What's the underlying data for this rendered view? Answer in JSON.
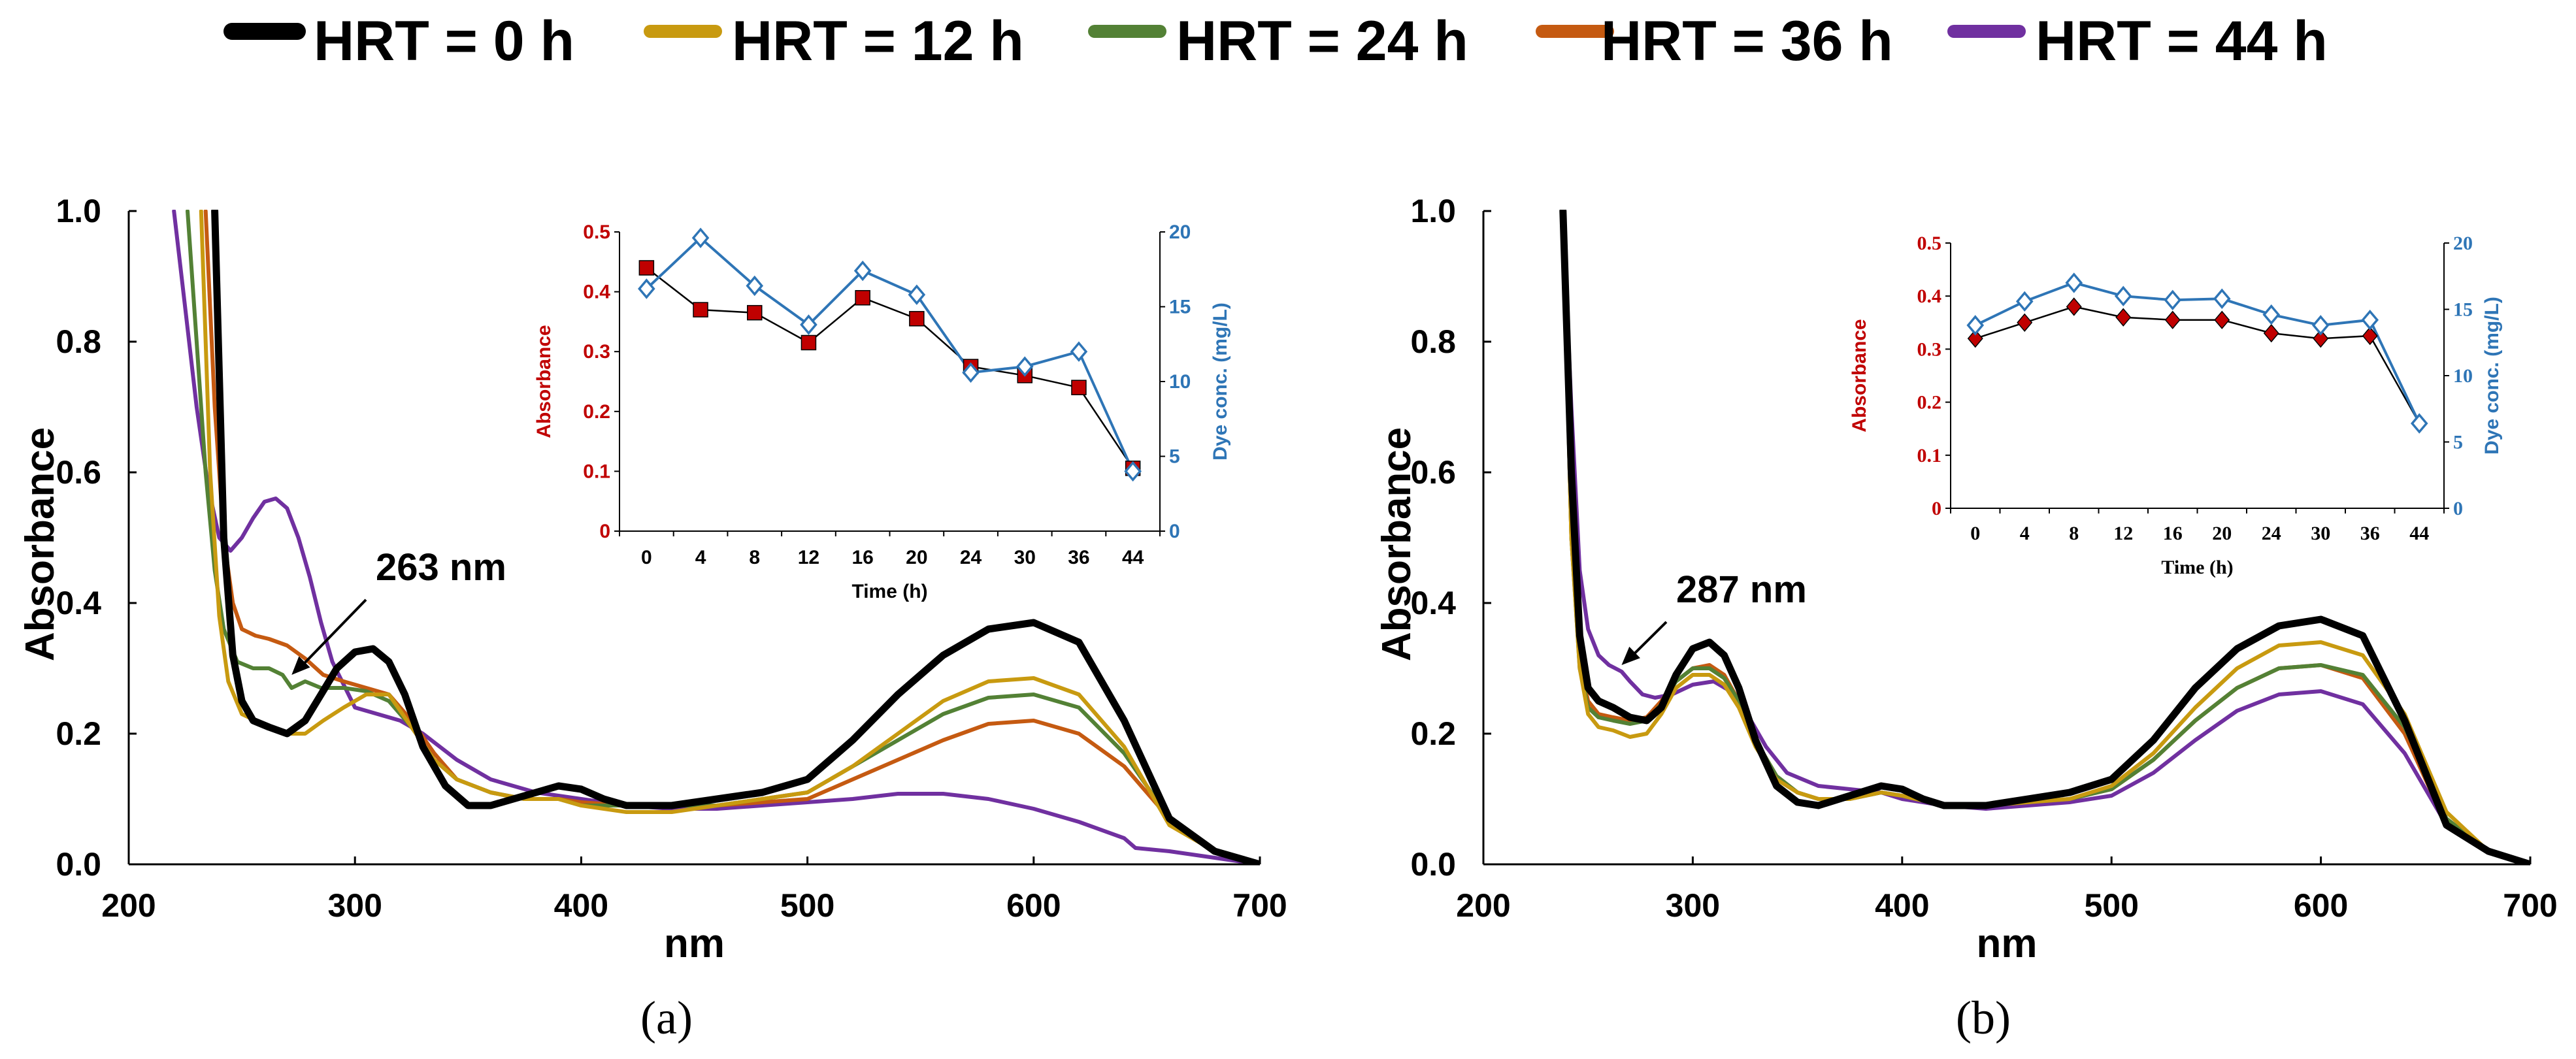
{
  "colors": {
    "HRT = 0 h": "#000000",
    "HRT = 12 h": "#c89a10",
    "HRT = 24 h": "#538135",
    "HRT = 36 h": "#c55a11",
    "HRT = 44 h": "#7030a0",
    "inset_absorbance": "#c00000",
    "inset_dye": "#2e75b6"
  },
  "legend": [
    "HRT = 0 h",
    "HRT = 12 h",
    "HRT = 24 h",
    "HRT = 36 h",
    "HRT = 44 h"
  ],
  "chart_data": [
    {
      "id": "a",
      "type": "line",
      "panel_label": "(a)",
      "xlabel": "nm",
      "ylabel": "Absorbance",
      "xlim": [
        200,
        700
      ],
      "ylim": [
        0,
        1.0
      ],
      "xticks": [
        "200",
        "300",
        "400",
        "500",
        "600",
        "700"
      ],
      "yticks": [
        "0.0",
        "0.2",
        "0.4",
        "0.6",
        "0.8",
        "1.0"
      ],
      "annotation": {
        "text": "263 nm",
        "arrow_to": [
          272,
          0.29
        ]
      },
      "series": [
        {
          "name": "HRT = 0 h",
          "x": [
            238,
            242,
            246,
            250,
            255,
            262,
            270,
            278,
            285,
            292,
            300,
            308,
            315,
            322,
            330,
            340,
            350,
            360,
            370,
            380,
            390,
            400,
            410,
            420,
            440,
            460,
            480,
            500,
            520,
            540,
            560,
            580,
            600,
            620,
            640,
            660,
            680,
            700
          ],
          "y": [
            1.0,
            0.5,
            0.32,
            0.25,
            0.22,
            0.21,
            0.2,
            0.22,
            0.26,
            0.3,
            0.325,
            0.33,
            0.31,
            0.26,
            0.18,
            0.12,
            0.09,
            0.09,
            0.1,
            0.11,
            0.12,
            0.115,
            0.1,
            0.09,
            0.09,
            0.1,
            0.11,
            0.13,
            0.19,
            0.26,
            0.32,
            0.36,
            0.37,
            0.34,
            0.22,
            0.07,
            0.02,
            0.0
          ]
        },
        {
          "name": "HRT = 12 h",
          "x": [
            232,
            236,
            240,
            244,
            250,
            256,
            262,
            270,
            278,
            286,
            295,
            305,
            315,
            325,
            335,
            345,
            360,
            375,
            390,
            400,
            420,
            440,
            460,
            480,
            500,
            520,
            540,
            560,
            580,
            600,
            620,
            640,
            660,
            680,
            700
          ],
          "y": [
            1.0,
            0.6,
            0.38,
            0.28,
            0.23,
            0.22,
            0.21,
            0.2,
            0.2,
            0.22,
            0.24,
            0.26,
            0.26,
            0.21,
            0.16,
            0.13,
            0.11,
            0.1,
            0.1,
            0.09,
            0.08,
            0.08,
            0.09,
            0.1,
            0.11,
            0.15,
            0.2,
            0.25,
            0.28,
            0.285,
            0.26,
            0.18,
            0.06,
            0.02,
            0.0
          ]
        },
        {
          "name": "HRT = 24 h",
          "x": [
            226,
            230,
            234,
            238,
            242,
            248,
            255,
            262,
            268,
            272,
            278,
            285,
            295,
            305,
            315,
            325,
            335,
            345,
            360,
            375,
            390,
            400,
            420,
            440,
            460,
            480,
            500,
            520,
            540,
            560,
            580,
            600,
            620,
            640,
            660,
            680,
            700
          ],
          "y": [
            1.0,
            0.8,
            0.6,
            0.45,
            0.36,
            0.31,
            0.3,
            0.3,
            0.29,
            0.27,
            0.28,
            0.27,
            0.27,
            0.265,
            0.25,
            0.21,
            0.16,
            0.13,
            0.11,
            0.1,
            0.1,
            0.09,
            0.09,
            0.09,
            0.09,
            0.1,
            0.11,
            0.15,
            0.19,
            0.23,
            0.255,
            0.26,
            0.24,
            0.17,
            0.07,
            0.02,
            0.0
          ]
        },
        {
          "name": "HRT = 36 h",
          "x": [
            234,
            238,
            242,
            246,
            250,
            256,
            262,
            270,
            278,
            286,
            295,
            305,
            315,
            325,
            335,
            345,
            360,
            375,
            390,
            400,
            420,
            440,
            460,
            480,
            500,
            520,
            540,
            560,
            580,
            600,
            620,
            640,
            660,
            680,
            700
          ],
          "y": [
            1.0,
            0.7,
            0.5,
            0.4,
            0.36,
            0.35,
            0.345,
            0.335,
            0.315,
            0.29,
            0.28,
            0.27,
            0.26,
            0.22,
            0.17,
            0.13,
            0.11,
            0.1,
            0.1,
            0.095,
            0.09,
            0.09,
            0.09,
            0.095,
            0.1,
            0.13,
            0.16,
            0.19,
            0.215,
            0.22,
            0.2,
            0.15,
            0.07,
            0.02,
            0.0
          ]
        },
        {
          "name": "HRT = 44 h",
          "x": [
            220,
            225,
            230,
            235,
            240,
            245,
            250,
            255,
            260,
            265,
            270,
            275,
            280,
            285,
            290,
            300,
            310,
            320,
            330,
            345,
            360,
            380,
            400,
            420,
            440,
            460,
            480,
            500,
            520,
            540,
            560,
            580,
            600,
            620,
            640,
            645,
            660,
            680,
            700
          ],
          "y": [
            1.0,
            0.85,
            0.7,
            0.58,
            0.5,
            0.48,
            0.5,
            0.53,
            0.555,
            0.56,
            0.545,
            0.5,
            0.44,
            0.37,
            0.31,
            0.24,
            0.23,
            0.22,
            0.2,
            0.16,
            0.13,
            0.11,
            0.1,
            0.09,
            0.085,
            0.085,
            0.09,
            0.095,
            0.1,
            0.108,
            0.108,
            0.1,
            0.085,
            0.065,
            0.04,
            0.025,
            0.02,
            0.01,
            0.0
          ]
        }
      ],
      "inset": {
        "xlabel": "Time (h)",
        "ylabel_left": "Absorbance",
        "ylabel_right": "Dye conc. (mg/L)",
        "categories": [
          "0",
          "4",
          "8",
          "12",
          "16",
          "20",
          "24",
          "30",
          "36",
          "44"
        ],
        "left_ylim": [
          0,
          0.5
        ],
        "left_ticks": [
          "0",
          "0.1",
          "0.2",
          "0.3",
          "0.4",
          "0.5"
        ],
        "right_ylim": [
          0,
          20
        ],
        "right_ticks": [
          "0",
          "5",
          "10",
          "15",
          "20"
        ],
        "absorbance": [
          0.44,
          0.37,
          0.365,
          0.315,
          0.39,
          0.355,
          0.275,
          0.26,
          0.24,
          0.105
        ],
        "dye_conc": [
          16.2,
          19.6,
          16.4,
          13.8,
          17.4,
          15.8,
          10.6,
          11.0,
          12.0,
          4.0
        ]
      }
    },
    {
      "id": "b",
      "type": "line",
      "panel_label": "(b)",
      "xlabel": "nm",
      "ylabel": "Absorbance",
      "xlim": [
        200,
        700
      ],
      "ylim": [
        0,
        1.0
      ],
      "xticks": [
        "200",
        "300",
        "400",
        "500",
        "600",
        "700"
      ],
      "yticks": [
        "0.0",
        "0.2",
        "0.4",
        "0.6",
        "0.8",
        "1.0"
      ],
      "annotation": {
        "text": "287 nm",
        "arrow_to": [
          266,
          0.305
        ]
      },
      "series": [
        {
          "name": "HRT = 0 h",
          "x": [
            238,
            242,
            246,
            250,
            255,
            262,
            270,
            278,
            285,
            292,
            300,
            308,
            315,
            322,
            330,
            340,
            350,
            360,
            370,
            380,
            390,
            400,
            410,
            420,
            440,
            460,
            480,
            500,
            520,
            540,
            560,
            580,
            600,
            620,
            640,
            660,
            680,
            700
          ],
          "y": [
            1.0,
            0.6,
            0.35,
            0.27,
            0.25,
            0.24,
            0.225,
            0.22,
            0.24,
            0.29,
            0.33,
            0.34,
            0.32,
            0.27,
            0.19,
            0.12,
            0.095,
            0.09,
            0.1,
            0.11,
            0.12,
            0.115,
            0.1,
            0.09,
            0.09,
            0.1,
            0.11,
            0.13,
            0.19,
            0.27,
            0.33,
            0.365,
            0.375,
            0.35,
            0.22,
            0.06,
            0.02,
            0.0
          ]
        },
        {
          "name": "HRT = 12 h",
          "x": [
            238,
            242,
            246,
            250,
            255,
            262,
            270,
            278,
            285,
            292,
            300,
            308,
            315,
            322,
            330,
            340,
            350,
            360,
            375,
            390,
            400,
            420,
            440,
            460,
            480,
            500,
            520,
            540,
            560,
            580,
            600,
            620,
            640,
            660,
            680,
            700
          ],
          "y": [
            1.0,
            0.5,
            0.3,
            0.23,
            0.21,
            0.205,
            0.195,
            0.2,
            0.23,
            0.27,
            0.29,
            0.29,
            0.275,
            0.24,
            0.18,
            0.13,
            0.11,
            0.1,
            0.1,
            0.11,
            0.105,
            0.09,
            0.09,
            0.095,
            0.1,
            0.12,
            0.17,
            0.24,
            0.3,
            0.335,
            0.34,
            0.32,
            0.23,
            0.08,
            0.02,
            0.0
          ]
        },
        {
          "name": "HRT = 24 h",
          "x": [
            238,
            242,
            246,
            250,
            255,
            262,
            270,
            278,
            285,
            292,
            300,
            308,
            315,
            322,
            330,
            340,
            350,
            360,
            375,
            390,
            400,
            420,
            440,
            460,
            480,
            500,
            520,
            540,
            560,
            580,
            600,
            620,
            640,
            660,
            680,
            700
          ],
          "y": [
            1.0,
            0.5,
            0.3,
            0.24,
            0.225,
            0.22,
            0.215,
            0.22,
            0.245,
            0.28,
            0.3,
            0.3,
            0.285,
            0.25,
            0.19,
            0.135,
            0.11,
            0.1,
            0.1,
            0.11,
            0.105,
            0.09,
            0.09,
            0.095,
            0.1,
            0.115,
            0.16,
            0.22,
            0.27,
            0.3,
            0.305,
            0.29,
            0.21,
            0.07,
            0.02,
            0.0
          ]
        },
        {
          "name": "HRT = 36 h",
          "x": [
            238,
            242,
            246,
            250,
            255,
            262,
            270,
            278,
            285,
            292,
            300,
            308,
            315,
            322,
            330,
            340,
            350,
            360,
            375,
            390,
            400,
            420,
            440,
            460,
            480,
            500,
            520,
            540,
            560,
            580,
            600,
            620,
            640,
            660,
            680,
            700
          ],
          "y": [
            1.0,
            0.5,
            0.31,
            0.25,
            0.23,
            0.225,
            0.22,
            0.225,
            0.25,
            0.28,
            0.3,
            0.305,
            0.29,
            0.25,
            0.19,
            0.135,
            0.11,
            0.1,
            0.1,
            0.11,
            0.105,
            0.09,
            0.09,
            0.095,
            0.1,
            0.115,
            0.16,
            0.22,
            0.27,
            0.3,
            0.305,
            0.285,
            0.2,
            0.06,
            0.02,
            0.0
          ]
        },
        {
          "name": "HRT = 44 h",
          "x": [
            238,
            242,
            246,
            250,
            255,
            260,
            266,
            270,
            276,
            282,
            290,
            300,
            310,
            318,
            326,
            335,
            345,
            360,
            375,
            390,
            400,
            420,
            440,
            460,
            480,
            500,
            520,
            540,
            560,
            580,
            600,
            620,
            640,
            660,
            680,
            700
          ],
          "y": [
            1.0,
            0.7,
            0.45,
            0.36,
            0.32,
            0.305,
            0.295,
            0.28,
            0.26,
            0.255,
            0.26,
            0.275,
            0.28,
            0.265,
            0.23,
            0.18,
            0.14,
            0.12,
            0.115,
            0.11,
            0.1,
            0.09,
            0.085,
            0.09,
            0.095,
            0.105,
            0.14,
            0.19,
            0.235,
            0.26,
            0.265,
            0.245,
            0.17,
            0.06,
            0.02,
            0.0
          ]
        }
      ],
      "inset": {
        "xlabel": "Time (h)",
        "ylabel_left": "Absorbance",
        "ylabel_right": "Dye conc. (mg/L)",
        "categories": [
          "0",
          "4",
          "8",
          "12",
          "16",
          "20",
          "24",
          "30",
          "36",
          "44"
        ],
        "left_ylim": [
          0,
          0.5
        ],
        "left_ticks": [
          "0",
          "0.1",
          "0.2",
          "0.3",
          "0.4",
          "0.5"
        ],
        "right_ylim": [
          0,
          20
        ],
        "right_ticks": [
          "0",
          "5",
          "10",
          "15",
          "20"
        ],
        "absorbance": [
          0.32,
          0.35,
          0.38,
          0.36,
          0.355,
          0.355,
          0.33,
          0.32,
          0.325,
          0.16
        ],
        "dye_conc": [
          13.8,
          15.6,
          17.0,
          16.0,
          15.7,
          15.8,
          14.6,
          13.8,
          14.2,
          6.4
        ]
      }
    }
  ]
}
